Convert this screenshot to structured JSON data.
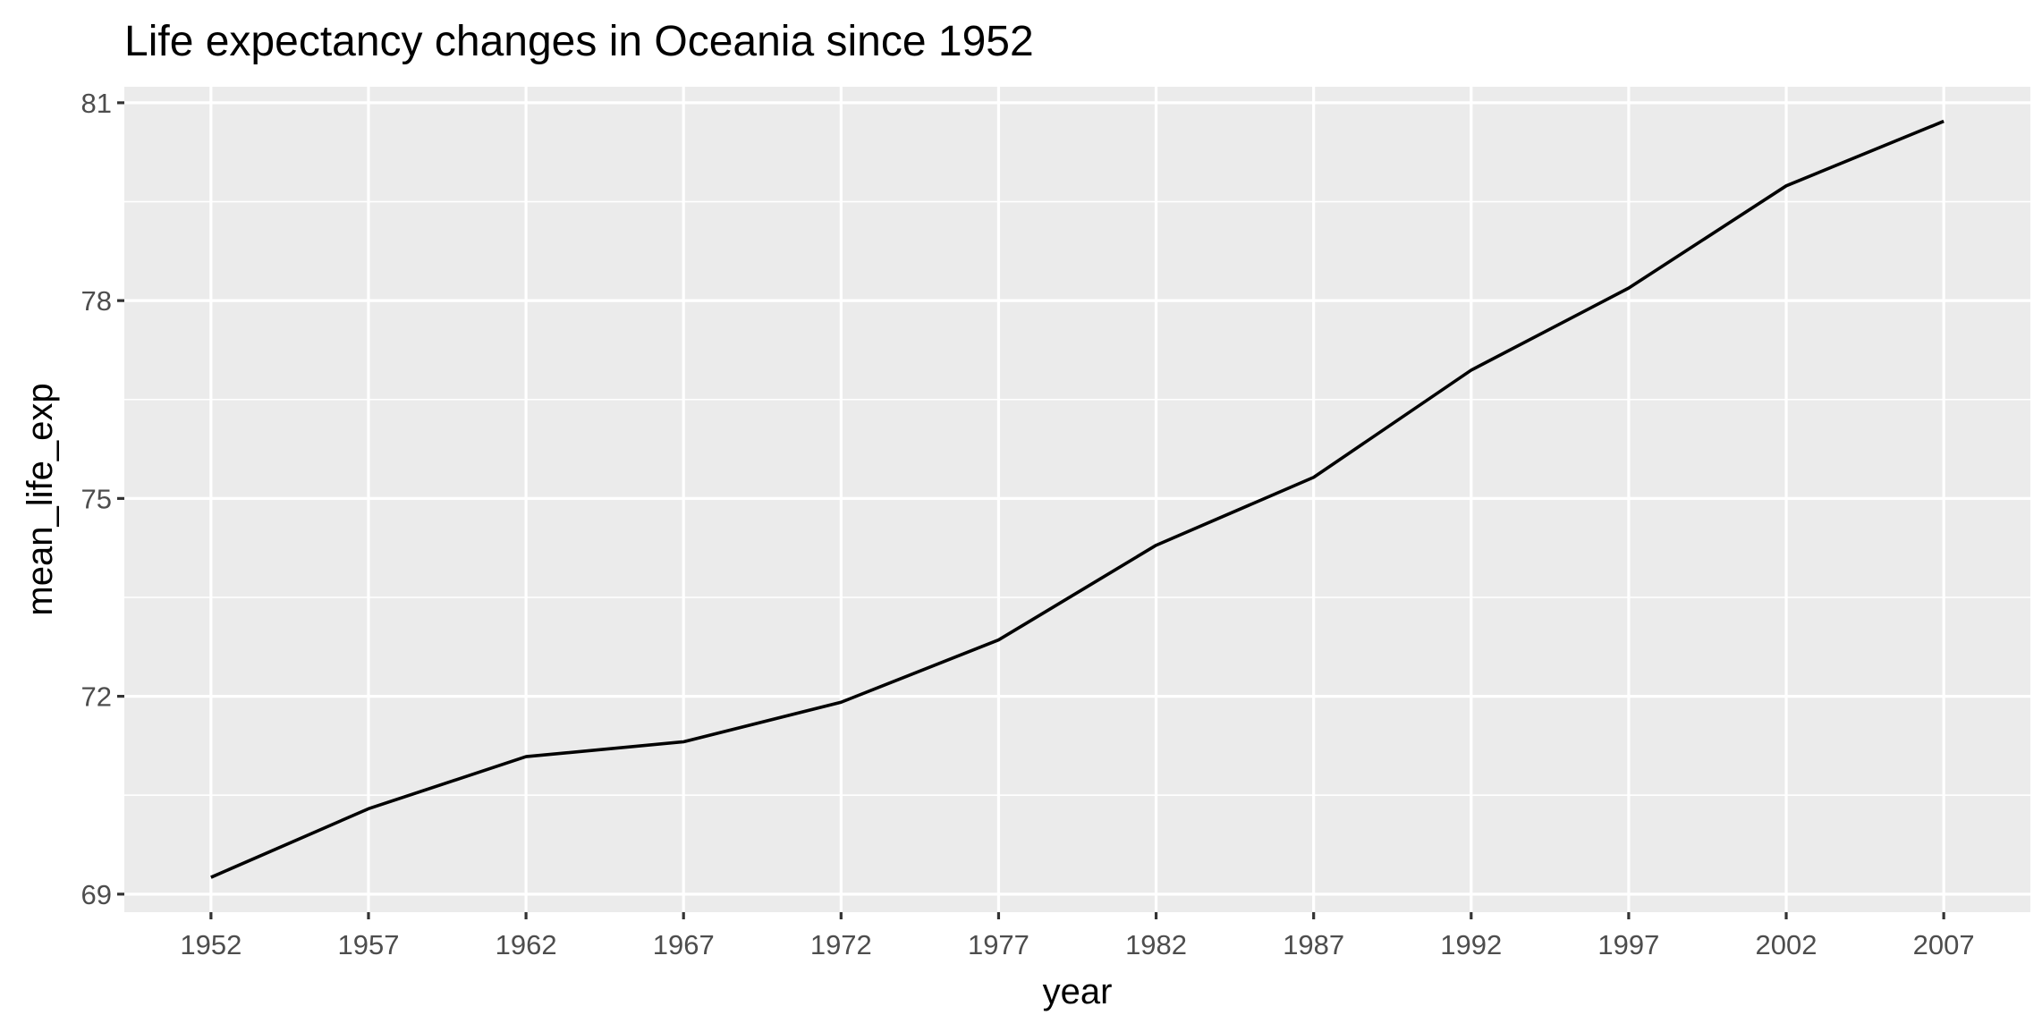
{
  "chart_data": {
    "type": "line",
    "title": "Life expectancy changes in Oceania since 1952",
    "xlabel": "year",
    "ylabel": "mean_life_exp",
    "x": [
      1952,
      1957,
      1962,
      1967,
      1972,
      1977,
      1982,
      1987,
      1992,
      1997,
      2002,
      2007
    ],
    "series": [
      {
        "values": [
          69.255,
          70.295,
          71.085,
          71.31,
          71.91,
          72.855,
          74.29,
          75.32,
          76.945,
          78.19,
          79.74,
          80.7195
        ]
      }
    ],
    "x_ticks": [
      "1952",
      "1957",
      "1962",
      "1967",
      "1972",
      "1977",
      "1982",
      "1987",
      "1992",
      "1997",
      "2002",
      "2007"
    ],
    "y_ticks": [
      "69",
      "72",
      "75",
      "78",
      "81"
    ],
    "y_tick_values": [
      69,
      72,
      75,
      78,
      81
    ],
    "xlim": [
      1949.25,
      2009.75
    ],
    "ylim": [
      68.7267,
      81.2428
    ],
    "grid": true,
    "legend": "none",
    "colors": {
      "panel": "#ebebeb",
      "grid": "#ffffff",
      "line": "#000000",
      "tick_text": "#4d4d4d"
    }
  }
}
